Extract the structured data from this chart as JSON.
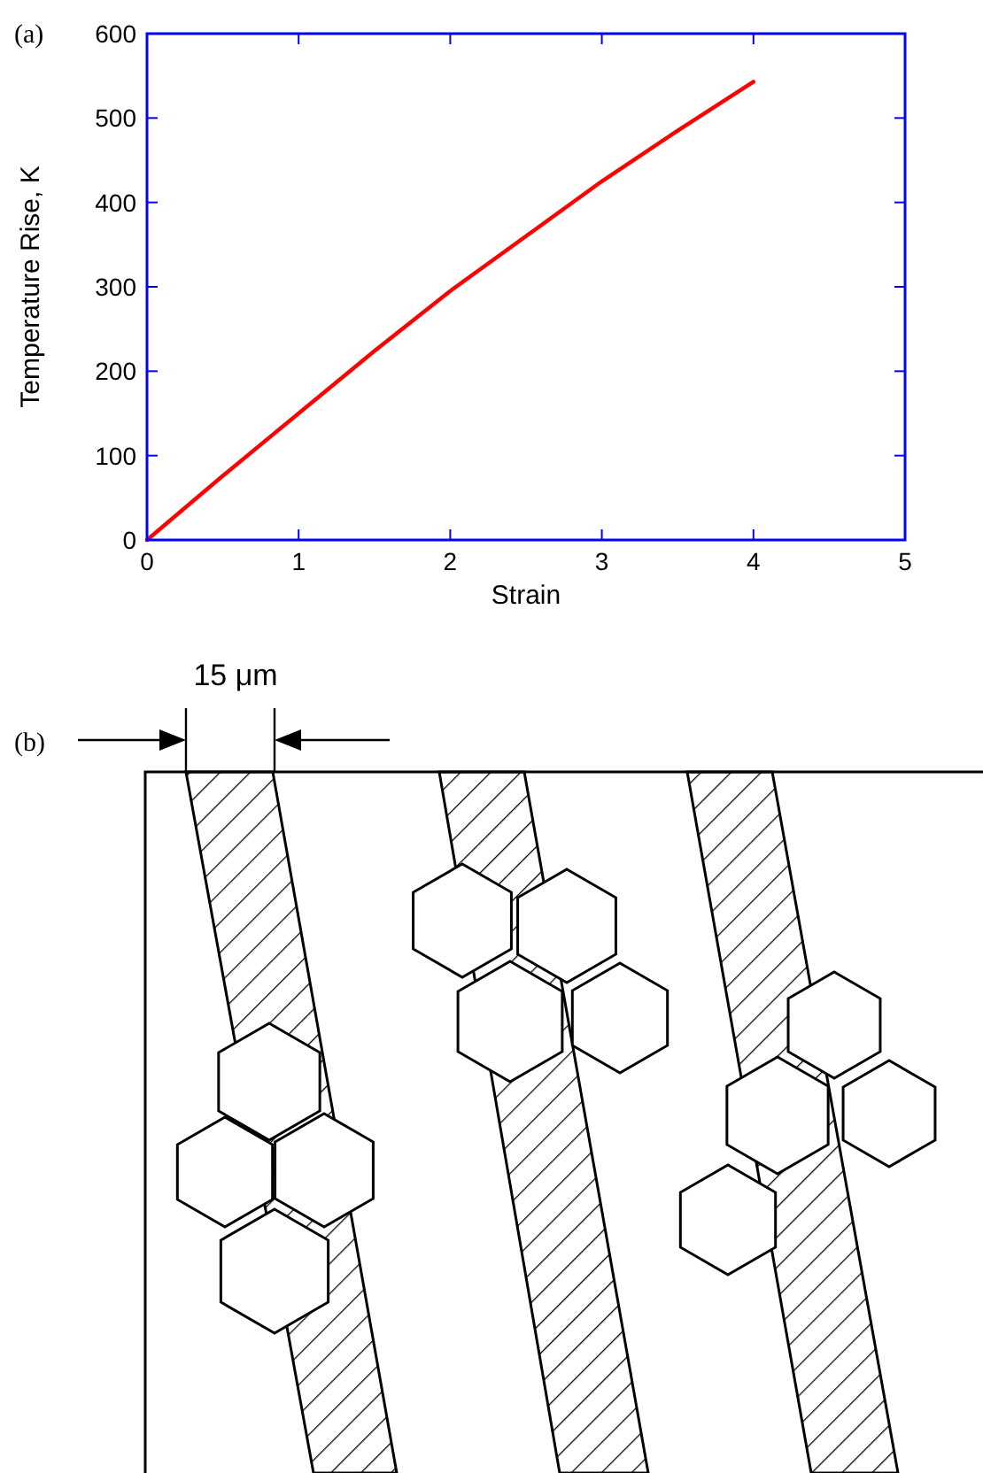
{
  "chart_data": {
    "type": "line",
    "xlabel": "Strain",
    "ylabel": "Temperature Rise, K",
    "x": [
      0,
      0.5,
      1,
      1.5,
      2,
      2.5,
      3,
      3.5,
      4
    ],
    "series": [
      {
        "color": "#ff0000",
        "values": [
          0,
          76,
          150,
          224,
          295,
          360,
          425,
          485,
          543
        ]
      }
    ],
    "xlim": [
      0,
      5
    ],
    "xticks": [
      0,
      1,
      2,
      3,
      4,
      5
    ],
    "ylim": [
      0,
      600
    ],
    "yticks": [
      0,
      100,
      200,
      300,
      400,
      500,
      600
    ],
    "grid": false,
    "marker": "none",
    "line_style": "solid",
    "annotations": [
      "(a)",
      "(b)",
      "15 μm"
    ]
  }
}
